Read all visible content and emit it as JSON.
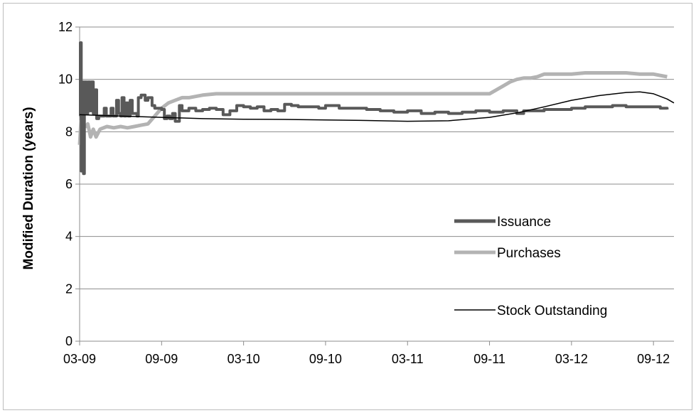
{
  "chart_data": {
    "type": "line",
    "title": "",
    "xlabel": "",
    "ylabel": "Modified Duration (years)",
    "ylim": [
      0,
      12
    ],
    "yticks": [
      "0",
      "2",
      "4",
      "6",
      "8",
      "10",
      "12"
    ],
    "xtick_labels": [
      "03-09",
      "09-09",
      "03-10",
      "09-10",
      "03-11",
      "09-11",
      "03-12",
      "09-12"
    ],
    "xrange_months": [
      0,
      43.5
    ],
    "grid": "horizontal",
    "legend_position": "right",
    "series": [
      {
        "name": "Issuance",
        "color": "#595959",
        "style": "step-thick",
        "points": [
          [
            0.0,
            8.6
          ],
          [
            0.05,
            11.4
          ],
          [
            0.12,
            6.5
          ],
          [
            0.2,
            9.9
          ],
          [
            0.28,
            6.4
          ],
          [
            0.35,
            9.9
          ],
          [
            0.5,
            8.7
          ],
          [
            0.6,
            9.9
          ],
          [
            0.75,
            8.8
          ],
          [
            0.85,
            9.9
          ],
          [
            1.0,
            8.7
          ],
          [
            1.1,
            9.6
          ],
          [
            1.25,
            8.5
          ],
          [
            1.4,
            8.6
          ],
          [
            1.7,
            8.6
          ],
          [
            1.8,
            8.9
          ],
          [
            1.95,
            8.6
          ],
          [
            2.2,
            8.6
          ],
          [
            2.3,
            8.9
          ],
          [
            2.45,
            8.6
          ],
          [
            2.6,
            8.6
          ],
          [
            2.7,
            9.2
          ],
          [
            2.85,
            8.7
          ],
          [
            3.0,
            8.6
          ],
          [
            3.1,
            9.3
          ],
          [
            3.25,
            8.6
          ],
          [
            3.4,
            9.1
          ],
          [
            3.55,
            8.6
          ],
          [
            3.7,
            9.2
          ],
          [
            3.85,
            8.7
          ],
          [
            4.2,
            8.6
          ],
          [
            4.3,
            9.3
          ],
          [
            4.5,
            9.4
          ],
          [
            4.8,
            9.2
          ],
          [
            5.0,
            9.3
          ],
          [
            5.3,
            9.0
          ],
          [
            5.5,
            8.9
          ],
          [
            6.0,
            8.85
          ],
          [
            6.2,
            8.5
          ],
          [
            6.4,
            8.6
          ],
          [
            6.6,
            8.5
          ],
          [
            6.8,
            8.7
          ],
          [
            7.0,
            8.4
          ],
          [
            7.3,
            9.0
          ],
          [
            7.5,
            8.8
          ],
          [
            8.0,
            8.9
          ],
          [
            8.5,
            8.8
          ],
          [
            9.0,
            8.85
          ],
          [
            9.5,
            8.9
          ],
          [
            10.0,
            8.85
          ],
          [
            10.5,
            8.65
          ],
          [
            11.0,
            8.8
          ],
          [
            11.5,
            9.0
          ],
          [
            12.0,
            8.95
          ],
          [
            12.5,
            8.9
          ],
          [
            13.0,
            8.95
          ],
          [
            13.5,
            8.8
          ],
          [
            14.0,
            8.85
          ],
          [
            14.5,
            8.8
          ],
          [
            15.0,
            9.05
          ],
          [
            15.5,
            9.0
          ],
          [
            16.0,
            8.95
          ],
          [
            17.0,
            8.95
          ],
          [
            17.5,
            8.9
          ],
          [
            18.0,
            9.0
          ],
          [
            19.0,
            8.9
          ],
          [
            20.0,
            8.9
          ],
          [
            21.0,
            8.85
          ],
          [
            22.0,
            8.8
          ],
          [
            23.0,
            8.75
          ],
          [
            24.0,
            8.8
          ],
          [
            25.0,
            8.7
          ],
          [
            26.0,
            8.75
          ],
          [
            27.0,
            8.7
          ],
          [
            28.0,
            8.75
          ],
          [
            29.0,
            8.8
          ],
          [
            30.0,
            8.75
          ],
          [
            31.0,
            8.8
          ],
          [
            32.0,
            8.7
          ],
          [
            32.5,
            8.8
          ],
          [
            33.0,
            8.8
          ],
          [
            34.0,
            8.85
          ],
          [
            35.0,
            8.85
          ],
          [
            36.0,
            8.9
          ],
          [
            37.0,
            8.95
          ],
          [
            38.0,
            8.95
          ],
          [
            39.0,
            9.0
          ],
          [
            40.0,
            8.95
          ],
          [
            41.0,
            8.95
          ],
          [
            42.0,
            8.95
          ],
          [
            42.5,
            8.9
          ],
          [
            43.0,
            8.85
          ]
        ]
      },
      {
        "name": "Purchases",
        "color": "#b3b3b3",
        "style": "thick",
        "points": [
          [
            0.0,
            7.5
          ],
          [
            0.1,
            8.4
          ],
          [
            0.2,
            7.6
          ],
          [
            0.3,
            8.3
          ],
          [
            0.5,
            8.2
          ],
          [
            0.6,
            8.3
          ],
          [
            0.8,
            7.8
          ],
          [
            1.0,
            8.1
          ],
          [
            1.2,
            7.8
          ],
          [
            1.5,
            8.1
          ],
          [
            2.0,
            8.2
          ],
          [
            2.5,
            8.15
          ],
          [
            3.0,
            8.2
          ],
          [
            3.5,
            8.15
          ],
          [
            4.0,
            8.2
          ],
          [
            4.5,
            8.25
          ],
          [
            5.0,
            8.3
          ],
          [
            5.5,
            8.6
          ],
          [
            6.0,
            8.9
          ],
          [
            6.5,
            9.1
          ],
          [
            7.0,
            9.2
          ],
          [
            7.5,
            9.3
          ],
          [
            8.0,
            9.3
          ],
          [
            9.0,
            9.4
          ],
          [
            10.0,
            9.45
          ],
          [
            11.0,
            9.45
          ],
          [
            12.0,
            9.45
          ],
          [
            15.0,
            9.45
          ],
          [
            20.0,
            9.45
          ],
          [
            25.0,
            9.45
          ],
          [
            30.0,
            9.45
          ],
          [
            30.5,
            9.6
          ],
          [
            31.0,
            9.75
          ],
          [
            31.5,
            9.9
          ],
          [
            32.0,
            10.0
          ],
          [
            32.5,
            10.05
          ],
          [
            33.0,
            10.05
          ],
          [
            33.5,
            10.1
          ],
          [
            34.0,
            10.2
          ],
          [
            35.0,
            10.2
          ],
          [
            36.0,
            10.2
          ],
          [
            37.0,
            10.25
          ],
          [
            38.0,
            10.25
          ],
          [
            39.0,
            10.25
          ],
          [
            40.0,
            10.25
          ],
          [
            41.0,
            10.2
          ],
          [
            42.0,
            10.2
          ],
          [
            43.0,
            10.1
          ]
        ]
      },
      {
        "name": "Stock Outstanding",
        "color": "#000000",
        "style": "thin",
        "points": [
          [
            0.0,
            8.65
          ],
          [
            3.0,
            8.6
          ],
          [
            6.0,
            8.55
          ],
          [
            9.0,
            8.5
          ],
          [
            12.0,
            8.48
          ],
          [
            15.0,
            8.47
          ],
          [
            18.0,
            8.45
          ],
          [
            21.0,
            8.43
          ],
          [
            24.0,
            8.4
          ],
          [
            27.0,
            8.42
          ],
          [
            30.0,
            8.55
          ],
          [
            32.0,
            8.72
          ],
          [
            34.0,
            8.95
          ],
          [
            36.0,
            9.2
          ],
          [
            38.0,
            9.38
          ],
          [
            40.0,
            9.5
          ],
          [
            41.0,
            9.52
          ],
          [
            42.0,
            9.45
          ],
          [
            43.0,
            9.25
          ],
          [
            43.5,
            9.1
          ]
        ]
      }
    ]
  }
}
